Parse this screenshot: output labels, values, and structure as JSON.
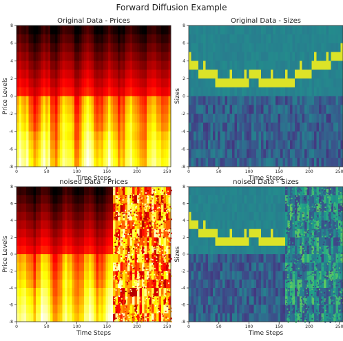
{
  "figure_title": "Forward Diffusion Example",
  "chart_data": [
    {
      "id": "orig-prices",
      "type": "heatmap",
      "title": "Original Data - Prices",
      "xlabel": "Time Steps",
      "ylabel": "Price Levels",
      "xlim": [
        0,
        256
      ],
      "ylim": [
        -8,
        8
      ],
      "xticks": [
        "0",
        "50",
        "100",
        "150",
        "200",
        "250"
      ],
      "yticks": [
        "8",
        "6",
        "4",
        "2",
        "0",
        "-2",
        "-4",
        "-6",
        "-8"
      ],
      "colormap": "hot",
      "noise_from_step": null
    },
    {
      "id": "orig-sizes",
      "type": "heatmap",
      "title": "Original Data - Sizes",
      "xlabel": "Time Steps",
      "ylabel": "Sizes",
      "xlim": [
        0,
        256
      ],
      "ylim": [
        -8,
        8
      ],
      "xticks": [
        "0",
        "50",
        "100",
        "150",
        "200",
        "250"
      ],
      "yticks": [
        "8",
        "6",
        "4",
        "2",
        "0",
        "-2",
        "-4",
        "-6",
        "-8"
      ],
      "colormap": "viridis",
      "noise_from_step": null
    },
    {
      "id": "noised-prices",
      "type": "heatmap",
      "title": "noised Data - Prices",
      "xlabel": "Time Steps",
      "ylabel": "Price Levels",
      "xlim": [
        0,
        256
      ],
      "ylim": [
        -8,
        8
      ],
      "xticks": [
        "0",
        "50",
        "100",
        "150",
        "200",
        "250"
      ],
      "yticks": [
        "8",
        "6",
        "4",
        "2",
        "0",
        "-2",
        "-4",
        "-6",
        "-8"
      ],
      "colormap": "hot",
      "noise_from_step": 160
    },
    {
      "id": "noised-sizes",
      "type": "heatmap",
      "title": "noised Data - Sizes",
      "xlabel": "Time Steps",
      "ylabel": "Sizes",
      "xlim": [
        0,
        256
      ],
      "ylim": [
        -8,
        8
      ],
      "xticks": [
        "0",
        "50",
        "100",
        "150",
        "200",
        "250"
      ],
      "yticks": [
        "8",
        "6",
        "4",
        "2",
        "0",
        "-2",
        "-4",
        "-6",
        "-8"
      ],
      "colormap": "viridis",
      "noise_from_step": 160
    }
  ]
}
